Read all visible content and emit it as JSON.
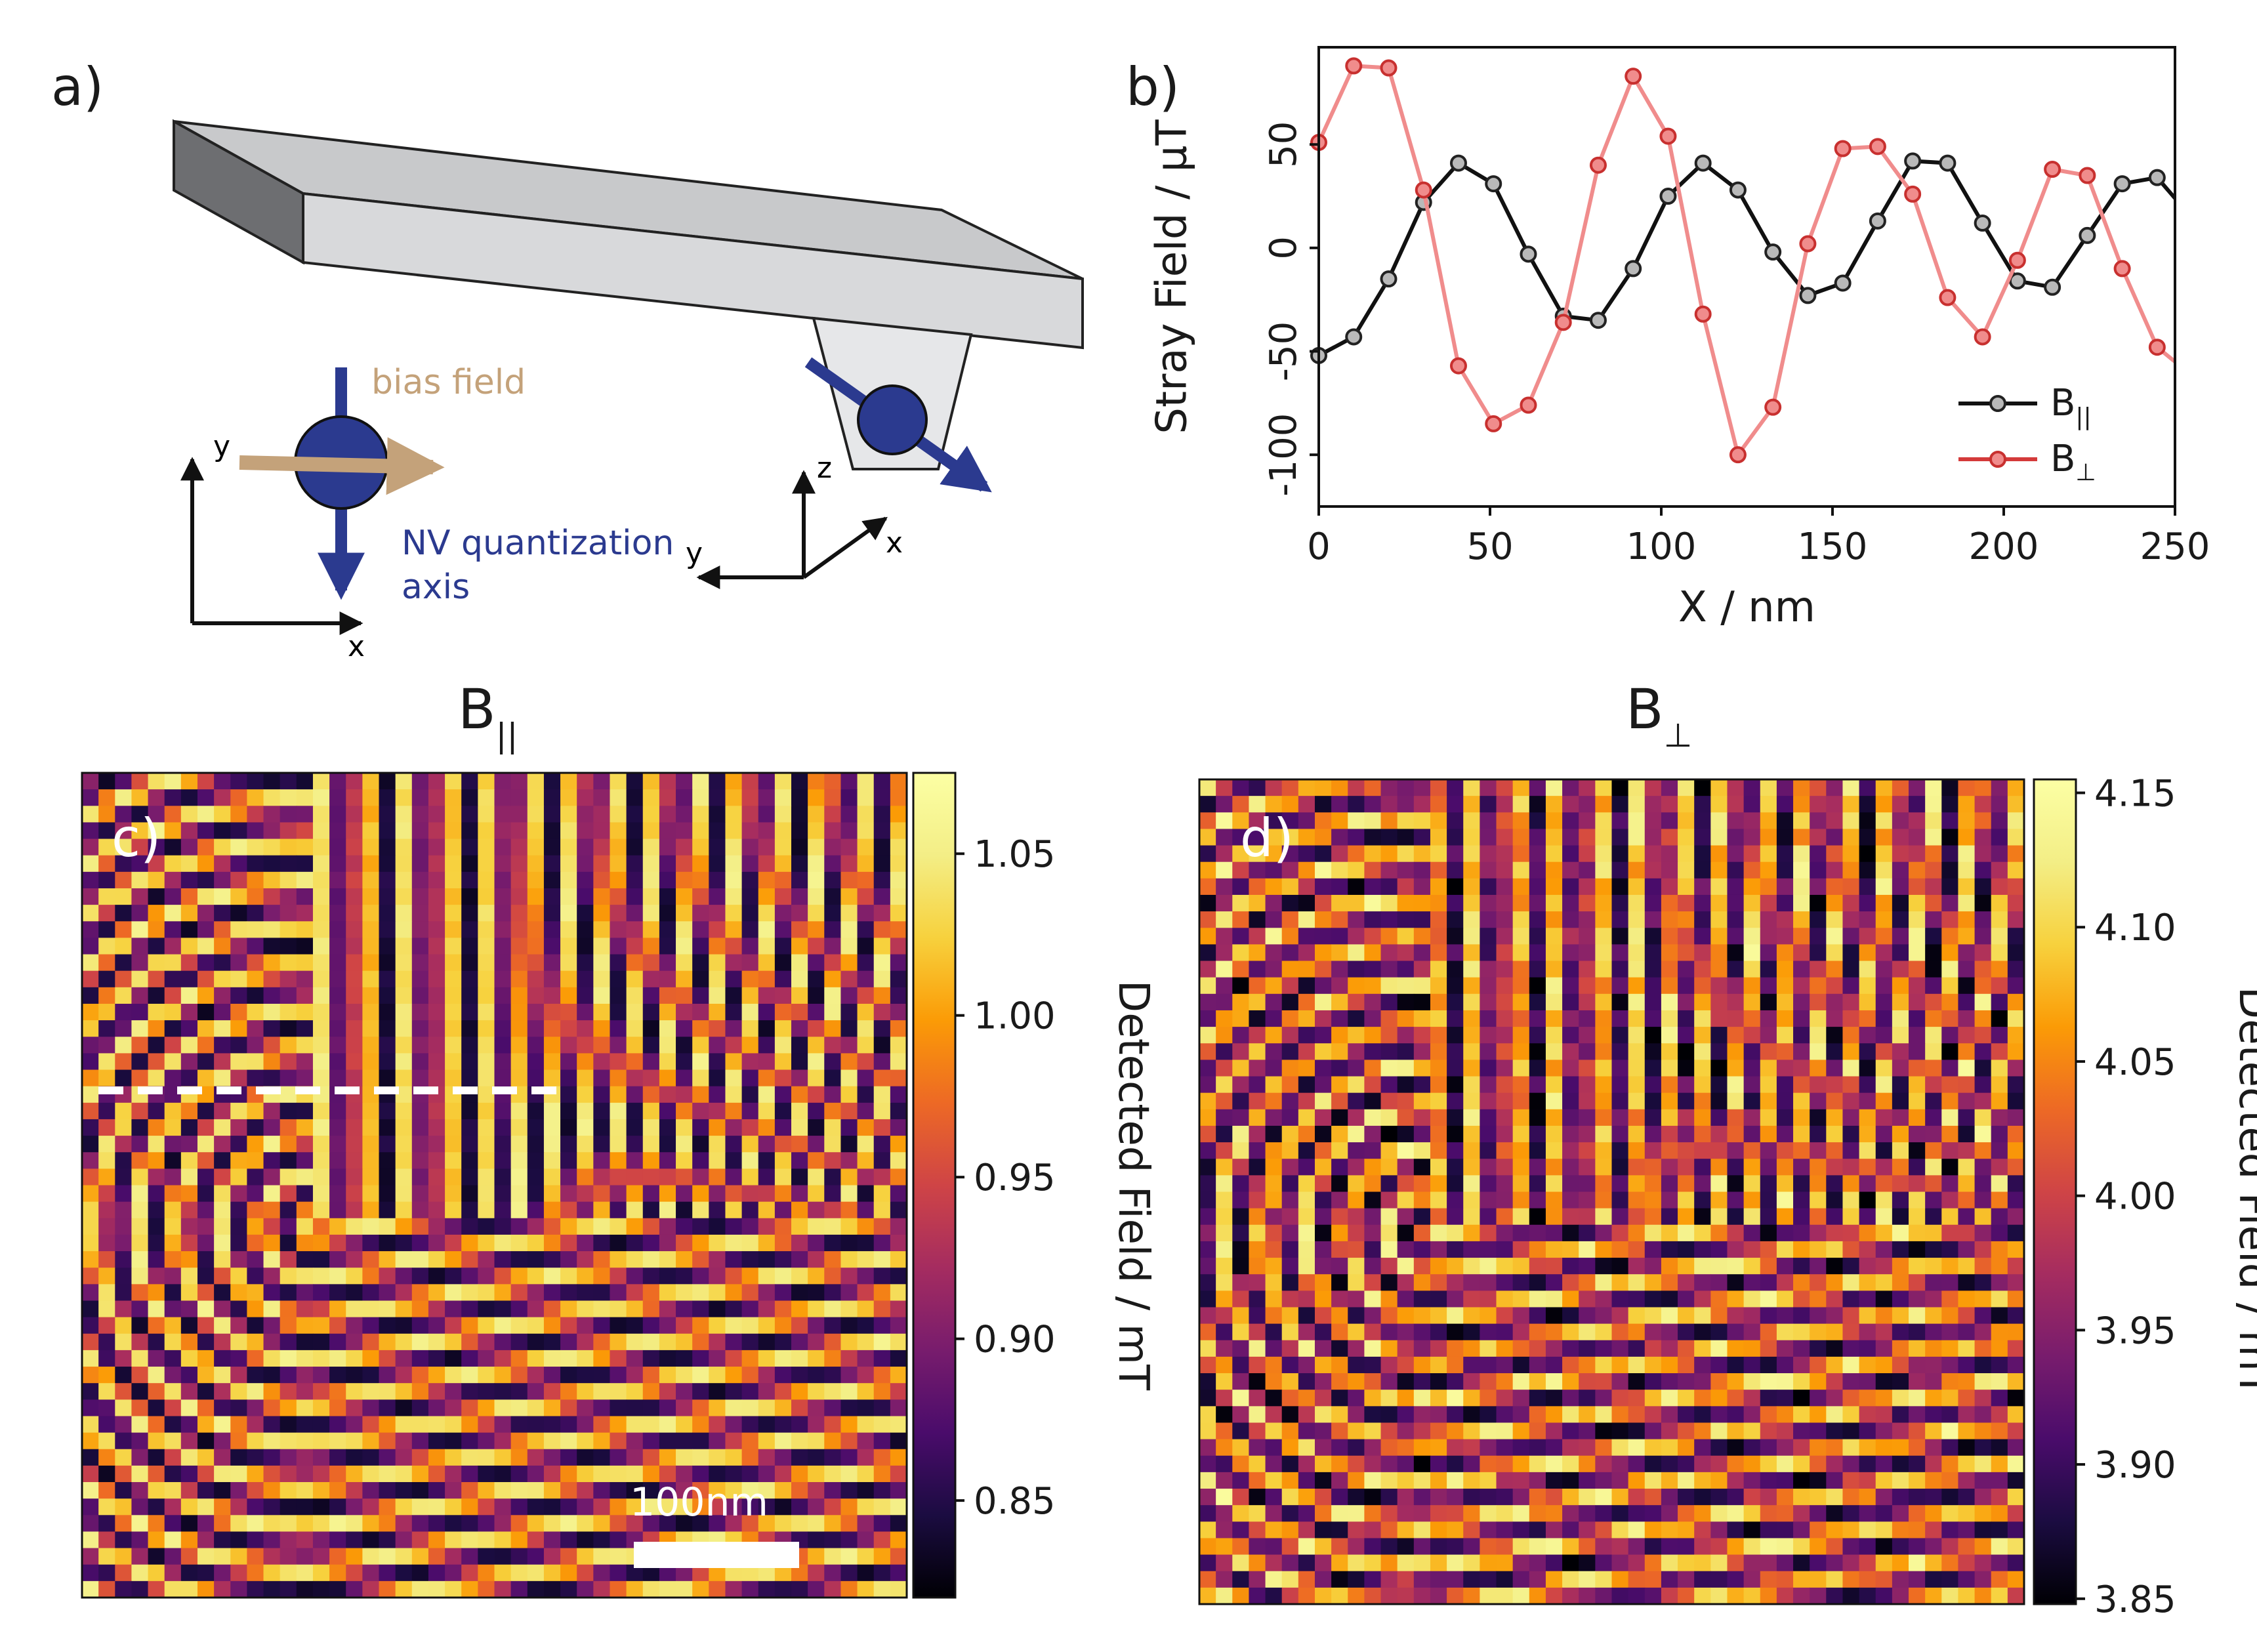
{
  "panel_labels": {
    "a": "a)",
    "b": "b)",
    "c": "c)",
    "d": "d)"
  },
  "schematic": {
    "bias_field": "bias field",
    "nv_axis_line1": "NV quantization",
    "nv_axis_line2": "axis",
    "left_axes": {
      "y": "y",
      "x": "x"
    },
    "right_axes": {
      "z": "z",
      "y": "y",
      "x": "x"
    },
    "colors": {
      "nv": "#2b3a8f",
      "bias": "#c4a27a",
      "cantilever_top": "#c8c9cb",
      "cantilever_front": "#d8d9db",
      "cantilever_side": "#6d6e71"
    }
  },
  "chart_data": [
    {
      "id": "b",
      "type": "line",
      "title": "",
      "xlabel": "X / nm",
      "ylabel": "Stray Field / µT",
      "xlim": [
        0,
        250
      ],
      "ylim": [
        -125,
        97
      ],
      "xticks": [
        0,
        50,
        100,
        150,
        200,
        250
      ],
      "yticks": [
        50,
        0,
        -50,
        -100
      ],
      "x": [
        0,
        10.2,
        20.4,
        30.6,
        40.8,
        51,
        61.2,
        71.4,
        81.6,
        91.8,
        102,
        112.2,
        122.4,
        132.6,
        142.8,
        153,
        163.2,
        173.4,
        183.6,
        193.8,
        204,
        214.2,
        224.4,
        234.6,
        244.8,
        250
      ],
      "series": [
        {
          "name": "B",
          "subscript": "||",
          "color": "#111111",
          "marker_fill": "#b9b9b9",
          "values": [
            -52,
            -43,
            -15,
            22,
            41,
            31,
            -3,
            -33,
            -35,
            -10,
            25,
            41,
            28,
            -2,
            -23,
            -17,
            13,
            42,
            41,
            12,
            -16,
            -19,
            6,
            31,
            34,
            24
          ]
        },
        {
          "name": "B",
          "subscript": "⊥",
          "color": "#f08c8c",
          "line_color": "#d43a3a",
          "marker_fill": "#f08c8c",
          "values": [
            51,
            88,
            87,
            28,
            -57,
            -85,
            -76,
            -36,
            40,
            83,
            54,
            -32,
            -100,
            -77,
            2,
            48,
            49,
            26,
            -24,
            -43,
            -6,
            38,
            35,
            -10,
            -48,
            -55
          ]
        }
      ],
      "legend": "lower-right"
    },
    {
      "id": "c",
      "type": "heatmap",
      "title": "B",
      "title_subscript": "||",
      "colormap": "inferno",
      "colorbar_label": "Detected Field / mT",
      "clim": [
        0.82,
        1.075
      ],
      "colorbar_ticks": [
        1.05,
        1.0,
        0.95,
        0.9,
        0.85
      ],
      "grid": [
        50,
        50
      ],
      "scalebar": "100nm"
    },
    {
      "id": "d",
      "type": "heatmap",
      "title": "B",
      "title_subscript": "⊥",
      "colormap": "inferno",
      "colorbar_label": "Detected Field / mT",
      "clim": [
        3.848,
        4.155
      ],
      "colorbar_ticks": [
        4.15,
        4.1,
        4.05,
        4.0,
        3.95,
        3.9,
        3.85
      ],
      "grid": [
        50,
        50
      ]
    }
  ]
}
